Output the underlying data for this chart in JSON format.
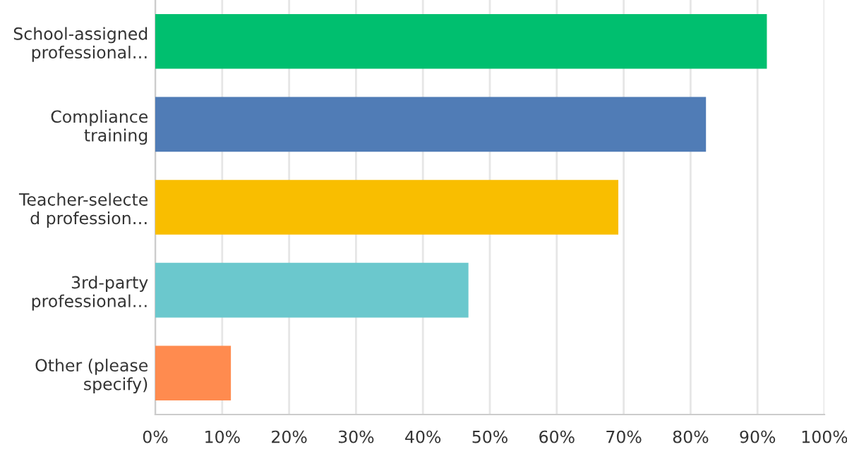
{
  "chart_data": {
    "type": "bar",
    "orientation": "horizontal",
    "categories": [
      "School-assigned\nprofessional…",
      "Compliance\ntraining",
      "Teacher-selecte\nd profession…",
      "3rd-party\nprofessional…",
      "Other (please\nspecify)"
    ],
    "values": [
      91.4,
      82.3,
      69.2,
      46.8,
      11.3
    ],
    "colors": [
      "#00bf6f",
      "#507cb6",
      "#f9be00",
      "#6bc8cd",
      "#ff8b4f"
    ],
    "xlim": [
      0,
      100
    ],
    "xticks": [
      {
        "value": 0,
        "label": "0%"
      },
      {
        "value": 10,
        "label": "10%"
      },
      {
        "value": 20,
        "label": "20%"
      },
      {
        "value": 30,
        "label": "30%"
      },
      {
        "value": 40,
        "label": "40%"
      },
      {
        "value": 50,
        "label": "50%"
      },
      {
        "value": 60,
        "label": "60%"
      },
      {
        "value": 70,
        "label": "70%"
      },
      {
        "value": 80,
        "label": "80%"
      },
      {
        "value": 90,
        "label": "90%"
      },
      {
        "value": 100,
        "label": "100%"
      }
    ],
    "grid": "x",
    "legend": false
  }
}
